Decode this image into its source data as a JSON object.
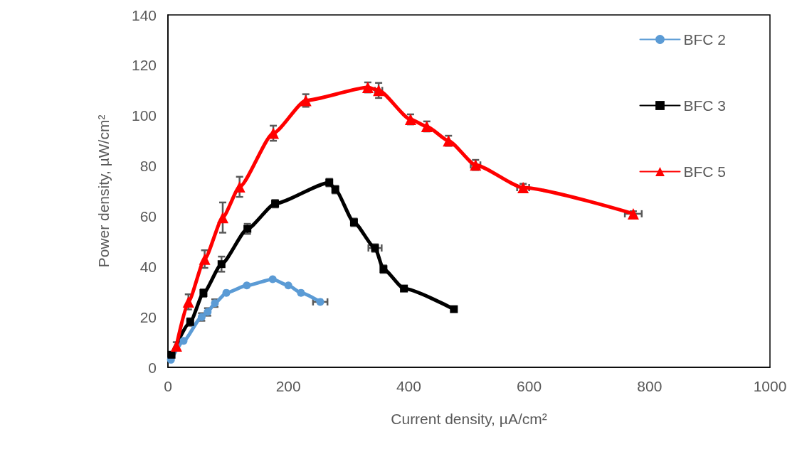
{
  "chart_data": {
    "type": "line",
    "xlabel": "Current density, µA/cm²",
    "ylabel": "Power density, µW/cm²",
    "xlim": [
      0,
      1000
    ],
    "xticks": [
      0,
      200,
      400,
      600,
      800,
      1000
    ],
    "ylim": [
      0,
      140
    ],
    "yticks": [
      0,
      20,
      40,
      60,
      80,
      100,
      120,
      140
    ],
    "grid": false,
    "legend": "top right",
    "series": [
      {
        "name": "BFC 2",
        "color": "#5b9bd5",
        "marker": "circle",
        "x": [
          5,
          26,
          56,
          66,
          78,
          97,
          131,
          174,
          200,
          221,
          253
        ],
        "values": [
          3,
          10.5,
          20,
          22,
          25.5,
          29.6,
          32.5,
          35,
          32.5,
          29.6,
          26
        ],
        "errors": [
          null,
          null,
          1.5,
          1.5,
          1.5,
          null,
          null,
          null,
          null,
          null,
          null
        ],
        "xerrors": [
          null,
          null,
          null,
          null,
          null,
          null,
          null,
          null,
          null,
          null,
          12
        ]
      },
      {
        "name": "BFC 3",
        "color": "#000000",
        "marker": "square",
        "x": [
          6,
          37,
          59,
          89,
          132,
          178,
          268,
          278,
          309,
          344,
          358,
          392,
          475
        ],
        "values": [
          5,
          18,
          29.5,
          41,
          55,
          65,
          73.4,
          70.6,
          57.6,
          47.4,
          39,
          31.3,
          23.1
        ],
        "errors": [
          null,
          1.5,
          1.5,
          3,
          2,
          1.5,
          1.5,
          1.5,
          1.5,
          1.5,
          1.5,
          1,
          1
        ],
        "xerrors": [
          null,
          null,
          null,
          null,
          null,
          null,
          null,
          null,
          null,
          11,
          null,
          null,
          null
        ]
      },
      {
        "name": "BFC 5",
        "color": "#ff0000",
        "marker": "triangle",
        "x": [
          14,
          34,
          61,
          91,
          119,
          175,
          229,
          332,
          350,
          403,
          430,
          466,
          511,
          590,
          773
        ],
        "values": [
          8.5,
          26,
          43,
          59.5,
          71.7,
          93,
          106,
          111.2,
          110,
          98.5,
          95.7,
          90,
          80.4,
          71.4,
          61
        ],
        "errors": [
          1.5,
          3,
          3.5,
          6,
          4,
          3,
          2.5,
          2,
          3,
          2,
          2,
          2,
          2,
          1.5,
          1
        ],
        "xerrors": [
          null,
          null,
          null,
          null,
          null,
          null,
          null,
          null,
          6,
          null,
          null,
          null,
          8,
          10,
          14
        ]
      }
    ]
  }
}
